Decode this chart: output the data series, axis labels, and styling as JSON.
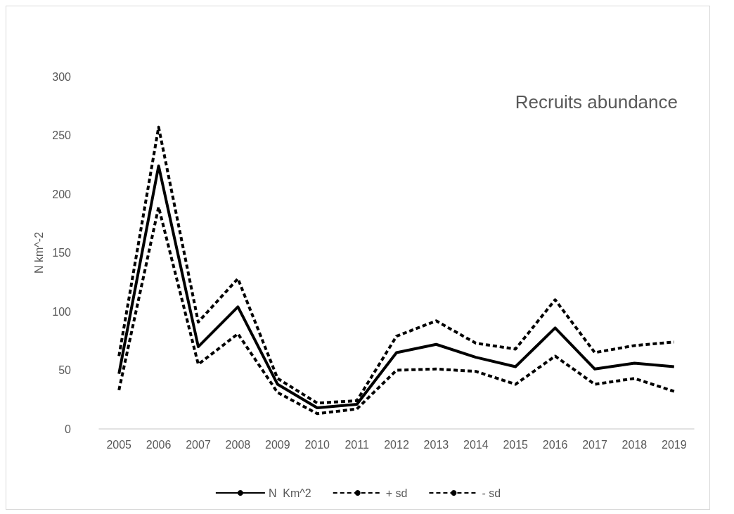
{
  "chart_data": {
    "type": "line",
    "title": "Recruits abundance",
    "ylabel": "N km^-2",
    "categories": [
      "2005",
      "2006",
      "2007",
      "2008",
      "2009",
      "2010",
      "2011",
      "2012",
      "2013",
      "2014",
      "2015",
      "2016",
      "2017",
      "2018",
      "2019"
    ],
    "series": [
      {
        "name": "N  Km^2",
        "color": "#000000",
        "line_style": "solid",
        "values": [
          47,
          224,
          70,
          104,
          38,
          18,
          21,
          65,
          72,
          61,
          53,
          86,
          51,
          56,
          53
        ]
      },
      {
        "name": "+ sd",
        "color": "#000000",
        "line_style": "dashed",
        "values": [
          62,
          257,
          91,
          128,
          43,
          22,
          24,
          79,
          92,
          73,
          68,
          110,
          65,
          71,
          74
        ]
      },
      {
        "name": "- sd",
        "color": "#000000",
        "line_style": "dashed",
        "values": [
          33,
          189,
          55,
          81,
          31,
          13,
          17,
          50,
          51,
          49,
          38,
          62,
          38,
          43,
          32
        ]
      }
    ],
    "ylim": [
      0,
      300
    ],
    "yticks": [
      0,
      50,
      100,
      150,
      200,
      250,
      300
    ],
    "grid": false,
    "legend": "bottom",
    "marker": "none"
  }
}
